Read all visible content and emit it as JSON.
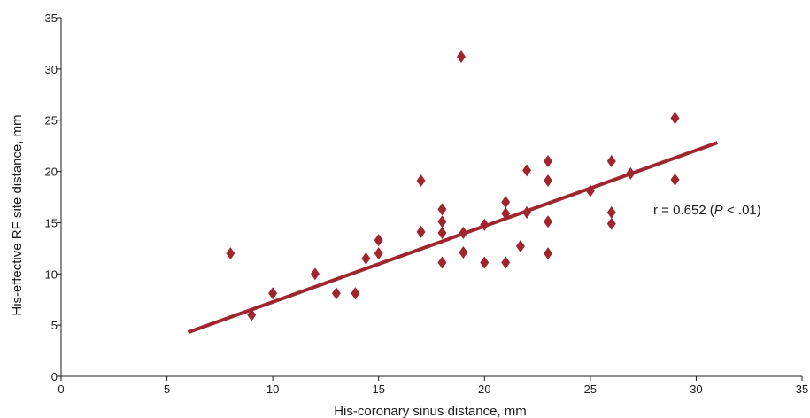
{
  "chart_data": {
    "type": "scatter",
    "xlabel": "His-coronary sinus distance, mm",
    "ylabel": "His-effective RF site distance, mm",
    "xlim": [
      0,
      35
    ],
    "ylim": [
      0,
      35
    ],
    "x_ticks": [
      0,
      5,
      10,
      15,
      20,
      25,
      30,
      35
    ],
    "y_ticks": [
      0,
      5,
      10,
      15,
      20,
      25,
      30,
      35
    ],
    "grid": false,
    "series": [
      {
        "marker": "diamond",
        "color": "#a0252e",
        "points": [
          [
            8,
            12
          ],
          [
            9,
            6
          ],
          [
            10,
            8.1
          ],
          [
            12,
            10
          ],
          [
            13,
            8.1
          ],
          [
            13.9,
            8.1
          ],
          [
            14.4,
            11.5
          ],
          [
            15,
            12
          ],
          [
            15,
            13.3
          ],
          [
            17,
            19.1
          ],
          [
            17,
            14.1
          ],
          [
            18,
            16.3
          ],
          [
            18,
            15.1
          ],
          [
            18,
            14
          ],
          [
            18,
            11.1
          ],
          [
            18.9,
            31.2
          ],
          [
            19,
            14
          ],
          [
            19,
            12.1
          ],
          [
            20,
            14.8
          ],
          [
            20,
            11.1
          ],
          [
            21,
            17
          ],
          [
            21,
            15.9
          ],
          [
            21,
            11.1
          ],
          [
            21.7,
            12.7
          ],
          [
            22,
            20.1
          ],
          [
            22,
            16
          ],
          [
            23,
            21
          ],
          [
            23,
            19.1
          ],
          [
            23,
            15.1
          ],
          [
            23,
            12
          ],
          [
            25,
            18.1
          ],
          [
            26,
            21
          ],
          [
            26,
            16
          ],
          [
            26,
            14.9
          ],
          [
            26.9,
            19.8
          ],
          [
            29,
            25.2
          ],
          [
            29,
            19.2
          ]
        ]
      }
    ],
    "trendline": {
      "x": [
        6,
        31
      ],
      "y": [
        4.3,
        22.8
      ],
      "color": "#a0252e"
    },
    "annotation": {
      "prefix": "r = 0.652 (",
      "italic": "P",
      "suffix": " < .01)"
    }
  }
}
